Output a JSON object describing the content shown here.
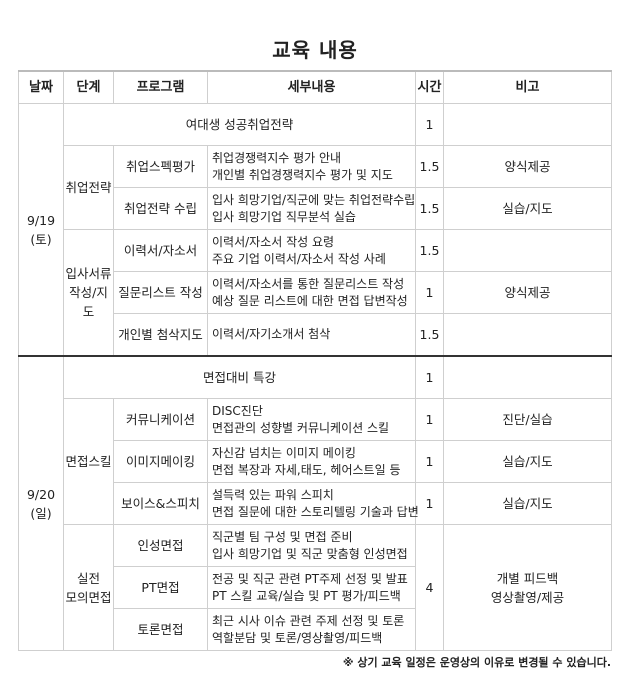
{
  "title": "교육 내용",
  "headers": [
    "날짜",
    "단계",
    "프로그램",
    "세부내용",
    "시간",
    "비고"
  ],
  "day1": {
    "date": "9/19",
    "weekday": "(토)",
    "intro": {
      "program": "여대생 성공취업전략",
      "time": "1",
      "note": ""
    },
    "stages": [
      {
        "name": "취업전략",
        "rows": [
          {
            "program": "취업스펙평가",
            "details": [
              "취업경쟁력지수 평가 안내",
              "개인별 취업경쟁력지수 평가 및 지도"
            ],
            "time": "1.5",
            "note": "양식제공"
          },
          {
            "program": "취업전략 수립",
            "details": [
              "입사 희망기업/직군에 맞는 취업전략수립",
              "입사 희망기업 직무분석 실습"
            ],
            "time": "1.5",
            "note": "실습/지도"
          }
        ]
      },
      {
        "name_lines": [
          "입사서류",
          "작성/지도"
        ],
        "rows": [
          {
            "program": "이력서/자소서",
            "details": [
              "이력서/자소서 작성 요령",
              "주요 기업 이력서/자소서 작성 사례"
            ],
            "time": "1.5",
            "note": ""
          },
          {
            "program": "질문리스트 작성",
            "details": [
              "이력서/자소서를 통한 질문리스트 작성",
              "예상 질문 리스트에 대한 면접 답변작성"
            ],
            "time": "1",
            "note": "양식제공"
          },
          {
            "program": "개인별 첨삭지도",
            "details": [
              "이력서/자기소개서 첨삭"
            ],
            "time": "1.5",
            "note": ""
          }
        ]
      }
    ]
  },
  "day2": {
    "date": "9/20",
    "weekday": "(일)",
    "intro": {
      "program": "면접대비 특강",
      "time": "1",
      "note": ""
    },
    "stages": [
      {
        "name": "면접스킬",
        "rows": [
          {
            "program": "커뮤니케이션",
            "details": [
              "DISC진단",
              "면접관의 성향별 커뮤니케이션 스킬"
            ],
            "time": "1",
            "note": "진단/실습"
          },
          {
            "program": "이미지메이킹",
            "details": [
              "자신감 넘치는 이미지 메이킹",
              "면접 복장과 자세,태도, 헤어스트일 등"
            ],
            "time": "1",
            "note": "실습/지도"
          },
          {
            "program": "보이스&스피치",
            "details": [
              "설득력 있는 파워 스피치",
              "면접 질문에 대한 스토리텔링 기술과 답변"
            ],
            "time": "1",
            "note": "실습/지도"
          }
        ]
      },
      {
        "name_lines": [
          "실전",
          "모의면접"
        ],
        "time": "4",
        "note_lines": [
          "개별 피드백",
          "영상촬영/제공"
        ],
        "rows": [
          {
            "program": "인성면접",
            "details": [
              "직군별 팀 구성 및 면접 준비",
              "입사 희망기업 및 직군 맞춤형 인성면접"
            ]
          },
          {
            "program": "PT면접",
            "details": [
              "전공 및 직군 관련 PT주제 선정 및 발표",
              "PT 스킬 교육/실습 및 PT 평가/피드백"
            ]
          },
          {
            "program": "토론면접",
            "details": [
              "최근 시사 이슈 관련 주제 선정 및 토론",
              "역할분담 및 토론/영상촬영/피드백"
            ]
          }
        ]
      }
    ]
  },
  "footnote": "※ 상기 교육 일정은 운영상의 이유로 변경될 수 있습니다."
}
